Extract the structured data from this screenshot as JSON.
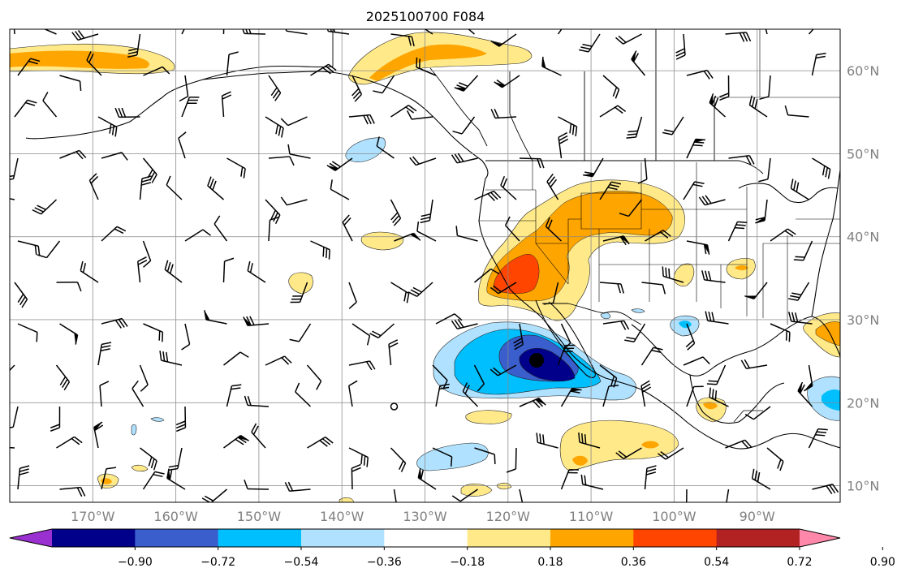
{
  "title": "2025100700 F084",
  "map": {
    "lon_range": [
      -180,
      -80
    ],
    "lat_range": [
      8,
      65
    ],
    "lon_ticks": [
      "170°W",
      "160°W",
      "150°W",
      "140°W",
      "130°W",
      "120°W",
      "110°W",
      "100°W",
      "90°W"
    ],
    "lat_ticks": [
      "10°N",
      "20°N",
      "30°N",
      "40°N",
      "50°N",
      "60°N"
    ],
    "grid": true
  },
  "colorbar": {
    "tick_labels": [
      "−0.90",
      "−0.72",
      "−0.54",
      "−0.36",
      "−0.18",
      "0.18",
      "0.36",
      "0.54",
      "0.72",
      "0.90"
    ],
    "colors": [
      "#9b30d0",
      "#00008b",
      "#3a5fcd",
      "#00bfff",
      "#b0e2ff",
      "#ffffff",
      "#ffe989",
      "#ffa500",
      "#ff4500",
      "#b22222",
      "#ff88aa"
    ],
    "extend": "both"
  }
}
